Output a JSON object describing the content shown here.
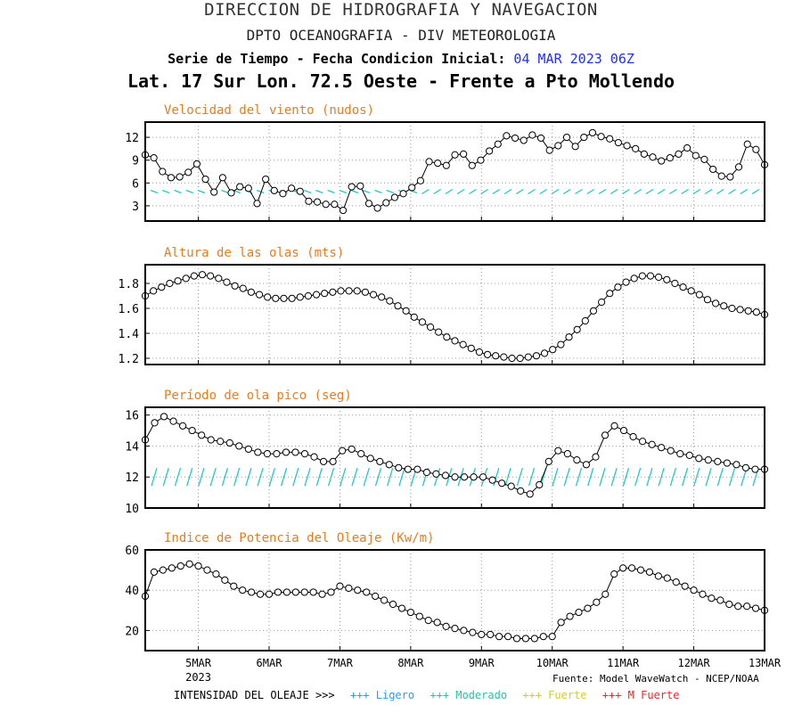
{
  "header": {
    "line1": "DIRECCION DE HIDROGRAFIA Y NAVEGACION",
    "line2": "DPTO OCEANOGRAFIA - DIV METEOROLOGIA",
    "line3_prefix": "Serie de Tiempo - Fecha Condicion Inicial:",
    "line3_date": "04 MAR 2023 06Z",
    "line4": "Lat. 17 Sur  Lon. 72.5 Oeste - Frente a Pto Mollendo"
  },
  "colors": {
    "title": "#e87d1e",
    "arrows": "#20c8c8",
    "line": "#000000",
    "ligero": "#1ea0ff",
    "moderado": "#20c8a0",
    "fuerte": "#e8e020",
    "mfuerte": "#ff2020"
  },
  "footer": {
    "label": "INTENSIDAD DEL OLEAJE >>>",
    "ligero": "+++ Ligero",
    "moderado": "+++ Moderado",
    "fuerte": "+++ Fuerte",
    "mfuerte": "+++ M Fuerte",
    "source": "Fuente: Model WaveWatch - NCEP/NOAA"
  },
  "chart_data": [
    {
      "type": "line",
      "title": "Velocidad del viento (nudos)",
      "x_start": "2023-03-04 06Z",
      "x_step_hours": 3,
      "x_ticks": [
        "5MAR",
        "6MAR",
        "7MAR",
        "8MAR",
        "9MAR",
        "10MAR",
        "11MAR",
        "12MAR",
        "13MAR"
      ],
      "x_sub": "2023",
      "ylim": [
        1,
        14
      ],
      "yticks": [
        3,
        6,
        9,
        12
      ],
      "values": [
        9.7,
        9.3,
        7.5,
        6.7,
        6.8,
        7.4,
        8.5,
        6.5,
        4.8,
        6.7,
        4.7,
        5.5,
        5.3,
        3.3,
        6.5,
        5.0,
        4.6,
        5.3,
        4.9,
        3.6,
        3.5,
        3.2,
        3.2,
        2.4,
        5.5,
        5.6,
        3.3,
        2.7,
        3.4,
        4.1,
        4.6,
        5.4,
        6.3,
        8.8,
        8.6,
        8.3,
        9.7,
        9.8,
        8.3,
        9.0,
        10.2,
        11.1,
        12.2,
        11.9,
        11.6,
        12.3,
        11.9,
        10.3,
        10.9,
        12.0,
        10.8,
        12.0,
        12.6,
        12.1,
        11.8,
        11.3,
        10.9,
        10.5,
        9.8,
        9.4,
        8.9,
        9.3,
        9.8,
        10.6,
        9.6,
        9.1,
        7.8,
        6.9,
        6.8,
        8.1,
        11.1,
        10.4,
        8.4
      ],
      "directions": "arrows"
    },
    {
      "type": "line",
      "title": "Altura de las olas (mts)",
      "ylim": [
        1.15,
        1.95
      ],
      "yticks": [
        1.2,
        1.4,
        1.6,
        1.8
      ],
      "values": [
        1.7,
        1.74,
        1.77,
        1.8,
        1.82,
        1.84,
        1.86,
        1.87,
        1.86,
        1.84,
        1.81,
        1.78,
        1.76,
        1.73,
        1.71,
        1.69,
        1.68,
        1.68,
        1.68,
        1.69,
        1.7,
        1.71,
        1.72,
        1.73,
        1.74,
        1.74,
        1.74,
        1.73,
        1.71,
        1.69,
        1.66,
        1.62,
        1.58,
        1.53,
        1.49,
        1.45,
        1.41,
        1.37,
        1.34,
        1.31,
        1.28,
        1.25,
        1.23,
        1.22,
        1.21,
        1.2,
        1.2,
        1.21,
        1.22,
        1.24,
        1.27,
        1.31,
        1.37,
        1.43,
        1.5,
        1.58,
        1.65,
        1.72,
        1.77,
        1.81,
        1.84,
        1.86,
        1.86,
        1.85,
        1.83,
        1.8,
        1.77,
        1.74,
        1.71,
        1.67,
        1.64,
        1.62,
        1.6,
        1.59,
        1.58,
        1.57,
        1.55
      ]
    },
    {
      "type": "line",
      "title": "Período de ola pico (seg)",
      "ylim": [
        10,
        16.5
      ],
      "yticks": [
        10,
        12,
        14,
        16
      ],
      "values": [
        14.4,
        15.5,
        15.9,
        15.6,
        15.3,
        15.0,
        14.7,
        14.4,
        14.3,
        14.2,
        14.0,
        13.8,
        13.6,
        13.5,
        13.5,
        13.6,
        13.6,
        13.5,
        13.3,
        13.0,
        13.0,
        13.7,
        13.8,
        13.5,
        13.2,
        13.0,
        12.8,
        12.6,
        12.5,
        12.5,
        12.3,
        12.2,
        12.1,
        12.0,
        12.0,
        12.0,
        12.0,
        11.8,
        11.6,
        11.4,
        11.1,
        10.9,
        11.5,
        13.0,
        13.7,
        13.5,
        13.1,
        12.8,
        13.3,
        14.7,
        15.3,
        15.0,
        14.6,
        14.3,
        14.1,
        13.9,
        13.7,
        13.5,
        13.4,
        13.2,
        13.1,
        13.0,
        12.9,
        12.8,
        12.6,
        12.5,
        12.5
      ],
      "directions": "arrows"
    },
    {
      "type": "line",
      "title": "Indice de Potencia del Oleaje (Kw/m)",
      "ylim": [
        10,
        60
      ],
      "yticks": [
        20,
        40,
        60
      ],
      "values": [
        37,
        49,
        50,
        51,
        52,
        53,
        52,
        50,
        48,
        45,
        42,
        40,
        39,
        38,
        38,
        39,
        39,
        39,
        39,
        39,
        38,
        39,
        42,
        41,
        40,
        39,
        37,
        35,
        33,
        31,
        29,
        27,
        25,
        24,
        22,
        21,
        20,
        19,
        18,
        18,
        17,
        17,
        16,
        16,
        16,
        17,
        17,
        24,
        27,
        29,
        31,
        34,
        38,
        48,
        51,
        51,
        50,
        49,
        47,
        46,
        44,
        42,
        40,
        38,
        36,
        35,
        33,
        32,
        32,
        31,
        30
      ]
    }
  ]
}
